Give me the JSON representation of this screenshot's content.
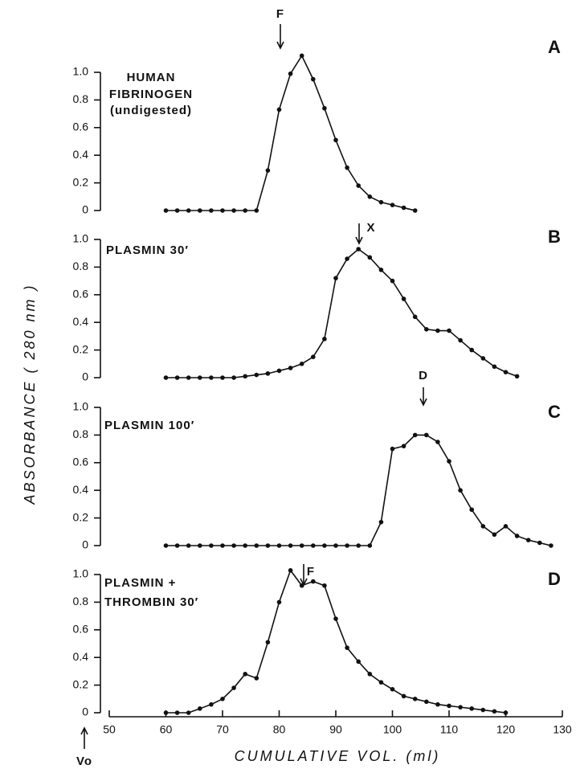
{
  "chart_data": [
    {
      "type": "line",
      "panel": "A",
      "peak_label": "F",
      "label_lines": [
        "HUMAN",
        "FIBRINOGEN",
        "(undigested)"
      ],
      "ylabel": "ABSORBANCE ( 280 nm )",
      "xlim": [
        50,
        130
      ],
      "ylim": [
        0,
        1.0
      ],
      "yticks": [
        0,
        {
          "value": 0.2,
          "label": "0.2"
        },
        {
          "value": 0.4,
          "label": "0.4"
        },
        {
          "value": 0.6,
          "label": "0.6"
        },
        {
          "value": 0.8,
          "label": "0.8"
        },
        {
          "value": 1.0,
          "label": "1.0"
        }
      ],
      "x": [
        60,
        62,
        64,
        66,
        68,
        70,
        72,
        74,
        76,
        78,
        80,
        82,
        84,
        86,
        88,
        90,
        92,
        94,
        96,
        98,
        100,
        102,
        104
      ],
      "values": [
        0,
        0,
        0,
        0,
        0,
        0,
        0,
        0,
        0,
        0.29,
        0.73,
        0.99,
        1.12,
        0.95,
        0.74,
        0.51,
        0.31,
        0.18,
        0.1,
        0.06,
        0.04,
        0.02,
        0
      ]
    },
    {
      "type": "line",
      "panel": "B",
      "peak_label": "X",
      "label_lines": [
        "PLASMIN 30′"
      ],
      "xlim": [
        50,
        130
      ],
      "ylim": [
        0,
        1.0
      ],
      "yticks": [
        0,
        {
          "value": 0.2,
          "label": "0.2"
        },
        {
          "value": 0.4,
          "label": "0.4"
        },
        {
          "value": 0.6,
          "label": "0.6"
        },
        {
          "value": 0.8,
          "label": "0.8"
        },
        {
          "value": 1.0,
          "label": "1.0"
        }
      ],
      "x": [
        60,
        62,
        64,
        66,
        68,
        70,
        72,
        74,
        76,
        78,
        80,
        82,
        84,
        86,
        88,
        90,
        92,
        94,
        96,
        98,
        100,
        102,
        104,
        106,
        108,
        110,
        112,
        114,
        116,
        118,
        120,
        122
      ],
      "values": [
        0,
        0,
        0,
        0,
        0,
        0,
        0,
        0.01,
        0.02,
        0.03,
        0.05,
        0.07,
        0.1,
        0.15,
        0.28,
        0.72,
        0.86,
        0.93,
        0.87,
        0.78,
        0.7,
        0.57,
        0.44,
        0.35,
        0.34,
        0.34,
        0.27,
        0.2,
        0.14,
        0.08,
        0.04,
        0.01
      ]
    },
    {
      "type": "line",
      "panel": "C",
      "peak_label": "D",
      "label_lines": [
        "PLASMIN 100′"
      ],
      "xlim": [
        50,
        130
      ],
      "ylim": [
        0,
        1.0
      ],
      "yticks": [
        0,
        {
          "value": 0.2,
          "label": "0.2"
        },
        {
          "value": 0.4,
          "label": "0.4"
        },
        {
          "value": 0.6,
          "label": "0.6"
        },
        {
          "value": 0.8,
          "label": "0.8"
        },
        {
          "value": 1.0,
          "label": "1.0"
        }
      ],
      "x": [
        60,
        62,
        64,
        66,
        68,
        70,
        72,
        74,
        76,
        78,
        80,
        82,
        84,
        86,
        88,
        90,
        92,
        94,
        96,
        98,
        100,
        102,
        104,
        106,
        108,
        110,
        112,
        114,
        116,
        118,
        120,
        122,
        124,
        126,
        128
      ],
      "values": [
        0,
        0,
        0,
        0,
        0,
        0,
        0,
        0,
        0,
        0,
        0,
        0,
        0,
        0,
        0,
        0,
        0,
        0,
        0,
        0.17,
        0.7,
        0.72,
        0.8,
        0.8,
        0.75,
        0.61,
        0.4,
        0.26,
        0.14,
        0.08,
        0.14,
        0.07,
        0.04,
        0.02,
        0
      ]
    },
    {
      "type": "line",
      "panel": "D",
      "peak_label": "F",
      "label_lines": [
        "PLASMIN +",
        "THROMBIN 30′"
      ],
      "xlabel": "CUMULATIVE VOL. (ml)",
      "void_label": "Vo",
      "xlim": [
        50,
        130
      ],
      "xticks": [
        50,
        60,
        70,
        80,
        90,
        100,
        110,
        120,
        130
      ],
      "ylim": [
        0,
        1.0
      ],
      "yticks": [
        0,
        {
          "value": 0.2,
          "label": "0.2"
        },
        {
          "value": 0.4,
          "label": "0.4"
        },
        {
          "value": 0.6,
          "label": "0.6"
        },
        {
          "value": 0.8,
          "label": "0.8"
        },
        {
          "value": 1.0,
          "label": "1.0"
        }
      ],
      "x": [
        60,
        62,
        64,
        66,
        68,
        70,
        72,
        74,
        76,
        78,
        80,
        82,
        84,
        86,
        88,
        90,
        92,
        94,
        96,
        98,
        100,
        102,
        104,
        106,
        108,
        110,
        112,
        114,
        116,
        118,
        120
      ],
      "values": [
        0,
        0,
        0,
        0.03,
        0.06,
        0.1,
        0.18,
        0.28,
        0.25,
        0.51,
        0.8,
        1.03,
        0.92,
        0.95,
        0.92,
        0.68,
        0.47,
        0.37,
        0.28,
        0.22,
        0.17,
        0.12,
        0.1,
        0.08,
        0.06,
        0.05,
        0.04,
        0.03,
        0.02,
        0.01,
        0
      ]
    }
  ]
}
